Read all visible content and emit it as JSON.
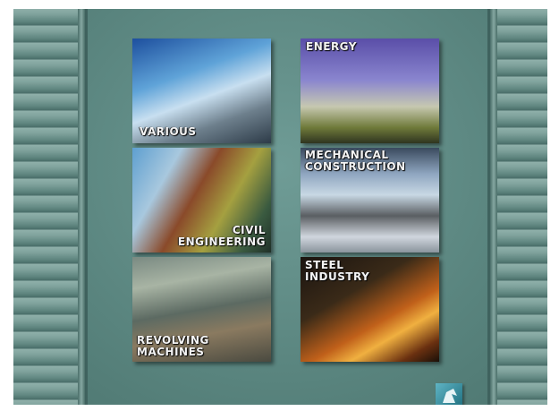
{
  "tiles": [
    {
      "label": [
        "VARIOUS"
      ]
    },
    {
      "label": [
        "ENERGY"
      ]
    },
    {
      "label": [
        "CIVIL",
        "ENGINEERING"
      ]
    },
    {
      "label": [
        "MECHANICAL",
        "CONSTRUCTION"
      ]
    },
    {
      "label": [
        "REVOLVING",
        "MACHINES"
      ]
    },
    {
      "label": [
        "STEEL",
        "INDUSTRY"
      ]
    }
  ]
}
